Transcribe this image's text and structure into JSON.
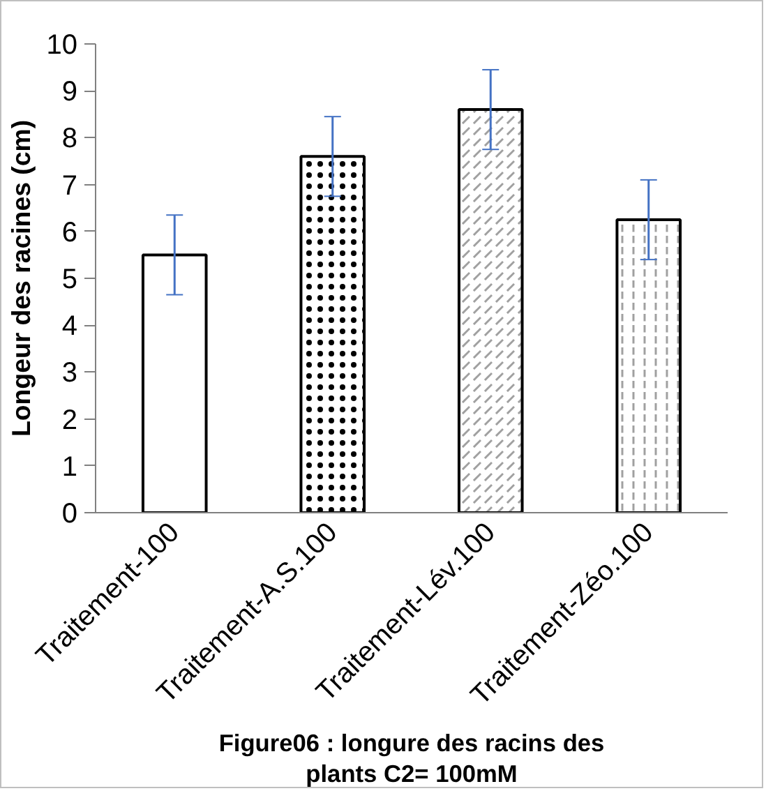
{
  "chart_data": {
    "type": "bar",
    "title": "Figure06 : longure des racins des plants C2= 100mM",
    "ylabel": "Longeur des racines (cm)",
    "categories": [
      "Traitement-100",
      "Traitement-A.S.100",
      "Traitement-Lév.100",
      "Traitement-Zéo.100"
    ],
    "values": [
      5.5,
      7.6,
      8.6,
      6.25
    ],
    "errors": [
      0.85,
      0.85,
      0.85,
      0.85
    ],
    "colors": [
      "#ffffff",
      "#ffffff",
      "#ffffff",
      "#ffffff"
    ],
    "ylim": [
      0,
      10
    ],
    "yticks": [
      0,
      1,
      2,
      3,
      4,
      5,
      6,
      7,
      8,
      9,
      10
    ],
    "grid": false
  }
}
